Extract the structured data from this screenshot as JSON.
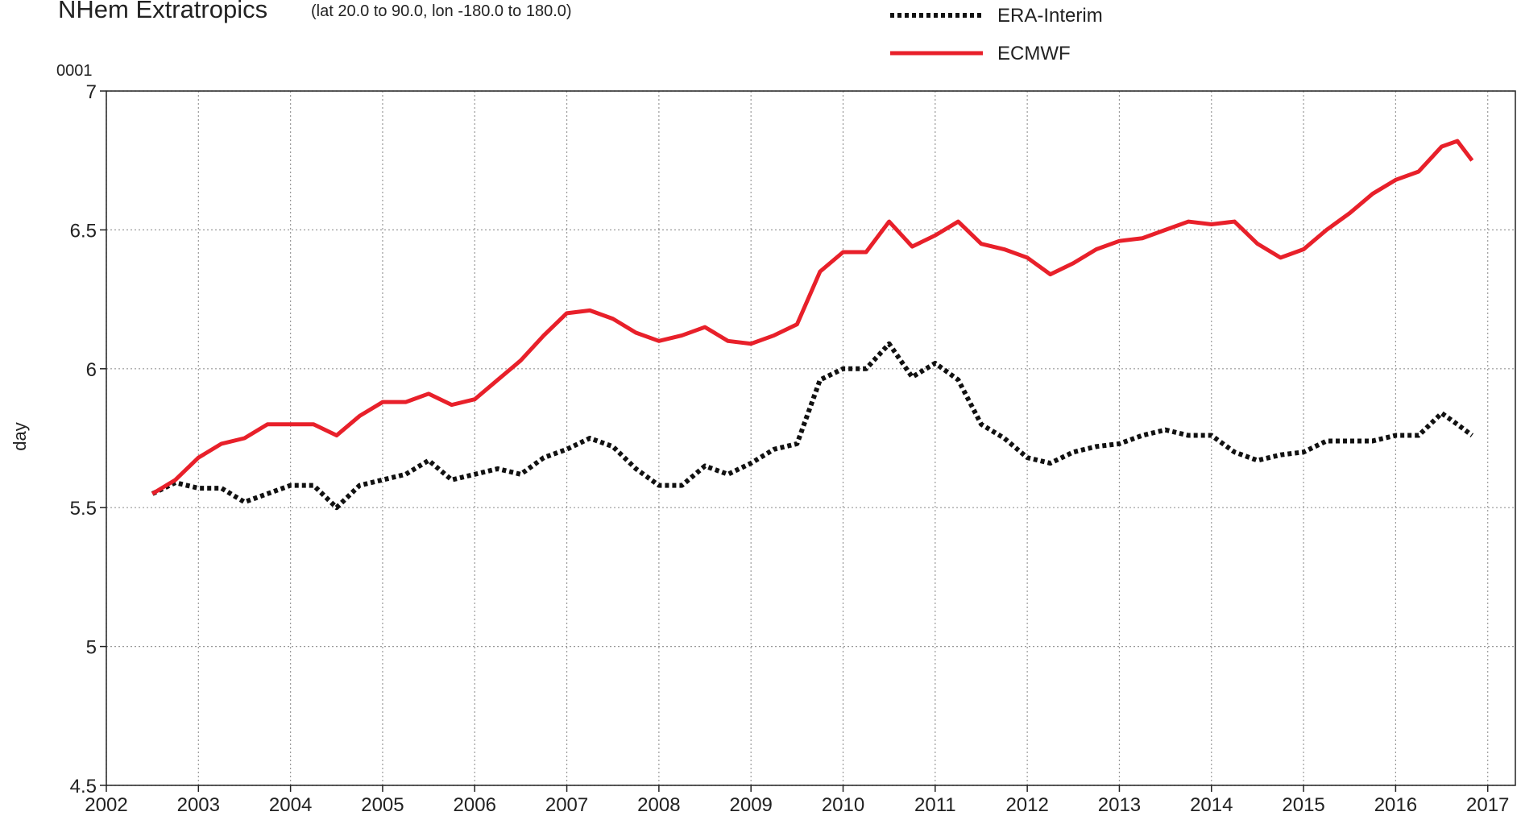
{
  "chart_data": {
    "type": "line",
    "title": "NHem Extratropics",
    "subtitle": "(lat  20.0 to 90.0, lon  -180.0 to  180.0)",
    "scale_label": "0001",
    "y_label": "day",
    "x": [
      2002.5,
      2002.75,
      2003,
      2003.25,
      2003.5,
      2003.75,
      2004,
      2004.25,
      2004.5,
      2004.75,
      2005,
      2005.25,
      2005.5,
      2005.75,
      2006,
      2006.25,
      2006.5,
      2006.75,
      2007,
      2007.25,
      2007.5,
      2007.75,
      2008,
      2008.25,
      2008.5,
      2008.75,
      2009,
      2009.25,
      2009.5,
      2009.75,
      2010,
      2010.25,
      2010.5,
      2010.75,
      2011,
      2011.25,
      2011.5,
      2011.75,
      2012,
      2012.25,
      2012.5,
      2012.75,
      2013,
      2013.25,
      2013.5,
      2013.75,
      2014,
      2014.25,
      2014.5,
      2014.75,
      2015,
      2015.25,
      2015.5,
      2015.75,
      2016,
      2016.25,
      2016.5,
      2016.67,
      2016.83
    ],
    "series": [
      {
        "name": "ERA-Interim",
        "color": "#111111",
        "dashed": true,
        "values": [
          5.55,
          5.59,
          5.57,
          5.57,
          5.52,
          5.55,
          5.58,
          5.58,
          5.5,
          5.58,
          5.6,
          5.62,
          5.67,
          5.6,
          5.62,
          5.64,
          5.62,
          5.68,
          5.71,
          5.75,
          5.72,
          5.64,
          5.58,
          5.58,
          5.65,
          5.62,
          5.66,
          5.71,
          5.73,
          5.96,
          6.0,
          6.0,
          6.09,
          5.97,
          6.02,
          5.96,
          5.8,
          5.75,
          5.68,
          5.66,
          5.7,
          5.72,
          5.73,
          5.76,
          5.78,
          5.76,
          5.76,
          5.7,
          5.67,
          5.69,
          5.7,
          5.74,
          5.74,
          5.74,
          5.76,
          5.76,
          5.84,
          5.8,
          5.76
        ]
      },
      {
        "name": "ECMWF",
        "color": "#e8202a",
        "dashed": false,
        "values": [
          5.55,
          5.6,
          5.68,
          5.73,
          5.75,
          5.8,
          5.8,
          5.8,
          5.76,
          5.83,
          5.88,
          5.88,
          5.91,
          5.87,
          5.89,
          5.96,
          6.03,
          6.12,
          6.2,
          6.21,
          6.18,
          6.13,
          6.1,
          6.12,
          6.15,
          6.1,
          6.09,
          6.12,
          6.16,
          6.35,
          6.42,
          6.42,
          6.53,
          6.44,
          6.48,
          6.53,
          6.45,
          6.43,
          6.4,
          6.34,
          6.38,
          6.43,
          6.46,
          6.47,
          6.5,
          6.53,
          6.52,
          6.53,
          6.45,
          6.4,
          6.43,
          6.5,
          6.56,
          6.63,
          6.68,
          6.71,
          6.8,
          6.82,
          6.75
        ]
      }
    ],
    "xlim": [
      2002,
      2017.3
    ],
    "xticks": [
      2002,
      2003,
      2004,
      2005,
      2006,
      2007,
      2008,
      2009,
      2010,
      2011,
      2012,
      2013,
      2014,
      2015,
      2016,
      2017
    ],
    "ylim": [
      4.5,
      7
    ],
    "yticks": [
      4.5,
      5,
      5.5,
      6,
      6.5,
      7
    ],
    "grid": true
  }
}
